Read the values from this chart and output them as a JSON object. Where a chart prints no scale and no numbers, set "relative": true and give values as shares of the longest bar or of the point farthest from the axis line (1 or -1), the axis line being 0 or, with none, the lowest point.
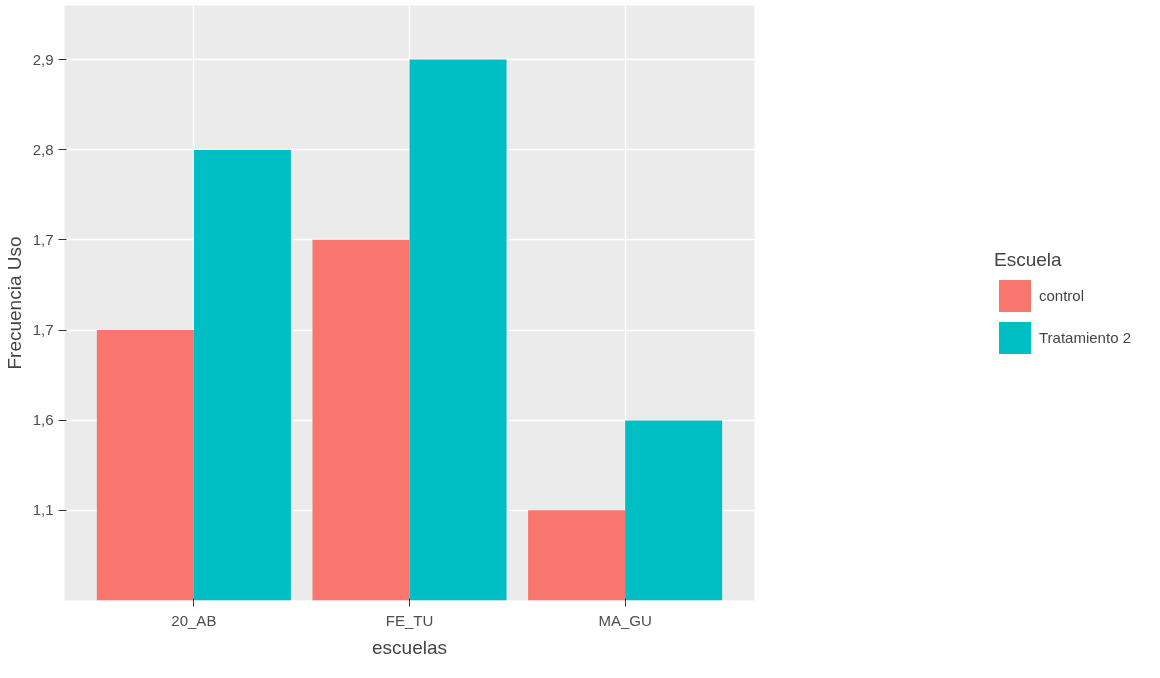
{
  "chart_data": {
    "type": "bar",
    "relative": true,
    "xlabel": "escuelas",
    "ylabel": "Frecuencia Uso",
    "legend_title": "Escuela",
    "categories": [
      "20_AB",
      "FE_TU",
      "MA_GU"
    ],
    "series": [
      {
        "name": "control",
        "color": "#f8766d",
        "values": [
          0.5,
          0.667,
          0.167
        ]
      },
      {
        "name": "Tratamiento 2",
        "color": "#00bfc4",
        "values": [
          0.833,
          1,
          0.333
        ]
      }
    ],
    "annotations": [
      "1,1",
      "1,6",
      "1,7",
      "1,7",
      "2,8",
      "2,9"
    ],
    "grid": true,
    "legend": "right"
  }
}
